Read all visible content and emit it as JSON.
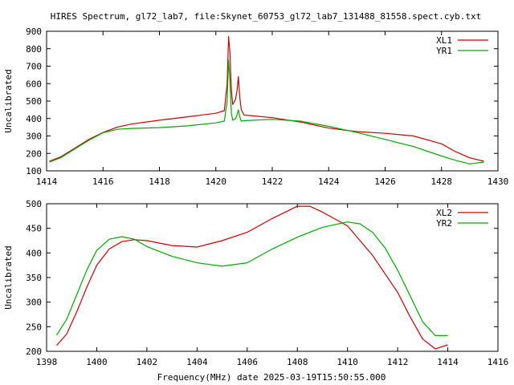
{
  "title": "HIRES Spectrum, gl72_lab7, file:Skynet_60753_gl72_lab7_131488_81558.spect.cyb.txt",
  "xlabel": "Frequency(MHz) date 2025-03-19T15:50:55.000",
  "chart_data": [
    {
      "type": "line",
      "ylabel": "Uncalibrated",
      "xlim": [
        1414,
        1430
      ],
      "ylim": [
        100,
        900
      ],
      "xticks": [
        1414,
        1416,
        1418,
        1420,
        1422,
        1424,
        1426,
        1428,
        1430
      ],
      "yticks": [
        100,
        200,
        300,
        400,
        500,
        600,
        700,
        800,
        900
      ],
      "legend_position": "top-right",
      "series": [
        {
          "name": "XL1",
          "color": "#cc0000",
          "x": [
            1414.1,
            1414.5,
            1415,
            1415.5,
            1416,
            1416.5,
            1417,
            1418,
            1419,
            1420,
            1420.3,
            1420.4,
            1420.45,
            1420.5,
            1420.55,
            1420.6,
            1420.7,
            1420.75,
            1420.8,
            1420.85,
            1420.9,
            1421,
            1422,
            1423,
            1424,
            1425,
            1426,
            1427,
            1428,
            1428.5,
            1429,
            1429.5
          ],
          "y": [
            155,
            180,
            230,
            280,
            320,
            350,
            368,
            390,
            410,
            430,
            445,
            600,
            870,
            780,
            560,
            480,
            510,
            560,
            640,
            520,
            450,
            420,
            405,
            380,
            345,
            325,
            315,
            300,
            255,
            210,
            175,
            155
          ]
        },
        {
          "name": "YR1",
          "color": "#00aa00",
          "x": [
            1414.1,
            1414.5,
            1415,
            1415.5,
            1416,
            1416.5,
            1417,
            1418,
            1419,
            1420,
            1420.3,
            1420.4,
            1420.45,
            1420.5,
            1420.55,
            1420.6,
            1420.7,
            1420.75,
            1420.8,
            1420.85,
            1420.9,
            1421,
            1422,
            1423,
            1424,
            1425,
            1426,
            1427,
            1428,
            1428.5,
            1429,
            1429.5
          ],
          "y": [
            150,
            175,
            225,
            275,
            318,
            338,
            343,
            348,
            358,
            375,
            385,
            500,
            735,
            620,
            430,
            390,
            400,
            420,
            450,
            410,
            385,
            388,
            395,
            385,
            355,
            320,
            280,
            240,
            185,
            160,
            140,
            150
          ]
        }
      ]
    },
    {
      "type": "line",
      "ylabel": "Uncalibrated",
      "xlim": [
        1398,
        1416
      ],
      "ylim": [
        200,
        500
      ],
      "xticks": [
        1398,
        1400,
        1402,
        1404,
        1406,
        1408,
        1410,
        1412,
        1414,
        1416
      ],
      "yticks": [
        200,
        250,
        300,
        350,
        400,
        450,
        500
      ],
      "legend_position": "top-right",
      "series": [
        {
          "name": "XL2",
          "color": "#cc0000",
          "x": [
            1398.4,
            1398.8,
            1399.2,
            1399.6,
            1400,
            1400.5,
            1401,
            1401.5,
            1402,
            1403,
            1404,
            1405,
            1406,
            1407,
            1408,
            1408.5,
            1409,
            1410,
            1411,
            1412,
            1412.5,
            1413,
            1413.5,
            1414
          ],
          "y": [
            212,
            235,
            280,
            330,
            375,
            408,
            423,
            427,
            425,
            415,
            412,
            425,
            442,
            470,
            495,
            495,
            483,
            455,
            395,
            320,
            270,
            225,
            205,
            213
          ]
        },
        {
          "name": "YR2",
          "color": "#00aa00",
          "x": [
            1398.4,
            1398.8,
            1399.2,
            1399.6,
            1400,
            1400.5,
            1401,
            1401.5,
            1402,
            1403,
            1404,
            1405,
            1406,
            1407,
            1408,
            1409,
            1410,
            1410.5,
            1411,
            1411.5,
            1412,
            1413,
            1413.5,
            1414
          ],
          "y": [
            233,
            265,
            315,
            365,
            405,
            428,
            433,
            428,
            413,
            393,
            380,
            373,
            380,
            408,
            432,
            452,
            463,
            459,
            442,
            410,
            365,
            260,
            232,
            232
          ]
        }
      ]
    }
  ]
}
